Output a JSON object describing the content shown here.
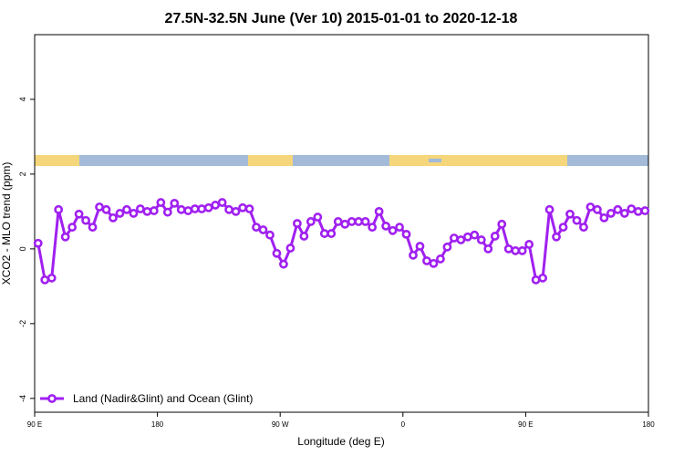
{
  "chart_data": {
    "type": "line",
    "title": "27.5N-32.5N June (Ver 10)   2015-01-01 to 2020-12-18",
    "x_label": "Longitude (deg E)",
    "y_label": "XCO2 - MLO trend (ppm)",
    "x": [
      92.5,
      97.5,
      102.5,
      107.5,
      112.5,
      117.5,
      122.5,
      127.5,
      132.5,
      137.5,
      142.5,
      147.5,
      152.5,
      157.5,
      162.5,
      167.5,
      172.5,
      177.5,
      182.5,
      187.5,
      192.5,
      197.5,
      202.5,
      207.5,
      212.5,
      217.5,
      222.5,
      227.5,
      232.5,
      237.5,
      242.5,
      247.5,
      252.5,
      257.5,
      262.5,
      267.5,
      272.5,
      277.5,
      282.5,
      287.5,
      292.5,
      297.5,
      302.5,
      307.5,
      312.5,
      317.5,
      322.5,
      327.5,
      332.5,
      337.5,
      342.5,
      347.5,
      352.5,
      357.5,
      362.5,
      367.5,
      372.5,
      377.5,
      382.5,
      387.5,
      392.5,
      397.5,
      402.5,
      407.5,
      412.5,
      417.5,
      422.5,
      427.5,
      432.5,
      437.5,
      442.5,
      447.5,
      452.5,
      457.5,
      462.5,
      467.5,
      472.5,
      477.5,
      482.5,
      487.5,
      492.5,
      497.5,
      502.5,
      507.5,
      512.5,
      517.5,
      522.5,
      527.5,
      532.5,
      537.5
    ],
    "series": [
      {
        "name": "Land (Nadir&Glint) and Ocean (Glint)",
        "color": "#a020f0",
        "values": [
          0.15,
          -0.83,
          -0.78,
          1.05,
          0.32,
          0.58,
          0.93,
          0.76,
          0.58,
          1.12,
          1.05,
          0.83,
          0.95,
          1.05,
          0.95,
          1.07,
          1.0,
          1.02,
          1.24,
          0.98,
          1.22,
          1.05,
          1.02,
          1.07,
          1.07,
          1.1,
          1.17,
          1.24,
          1.05,
          1.0,
          1.1,
          1.07,
          0.58,
          0.51,
          0.37,
          -0.12,
          -0.41,
          0.02,
          0.68,
          0.34,
          0.73,
          0.85,
          0.41,
          0.41,
          0.73,
          0.66,
          0.73,
          0.73,
          0.73,
          0.58,
          1.0,
          0.61,
          0.49,
          0.58,
          0.39,
          -0.17,
          0.07,
          -0.32,
          -0.39,
          -0.27,
          0.05,
          0.29,
          0.24,
          0.32,
          0.37,
          0.24,
          0.0,
          0.34,
          0.66,
          0.0,
          -0.05,
          -0.05,
          0.12,
          -0.83,
          -0.78,
          1.05,
          0.32,
          0.58,
          0.93,
          0.76,
          0.58,
          1.12,
          1.05,
          0.83,
          0.95,
          1.05,
          0.95,
          1.07,
          1.0,
          1.02
        ]
      }
    ],
    "xlim": [
      90,
      540
    ],
    "xticks": [
      {
        "value": 90,
        "label": "90 E"
      },
      {
        "value": 180,
        "label": "180"
      },
      {
        "value": 270,
        "label": "90 W"
      },
      {
        "value": 360,
        "label": "0"
      },
      {
        "value": 450,
        "label": "90 E"
      },
      {
        "value": 540,
        "label": "180"
      }
    ],
    "ylim": [
      -4.37,
      5.73
    ],
    "yticks": [
      -4,
      -2,
      0,
      2,
      4
    ],
    "grid": false,
    "legend": "lower left"
  }
}
